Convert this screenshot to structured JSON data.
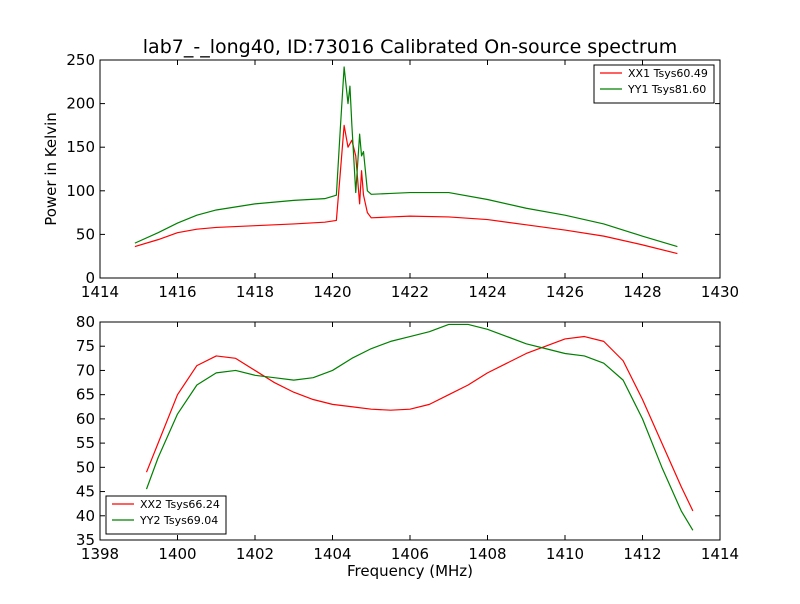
{
  "title": "lab7_-_long40, ID:73016 Calibrated On-source spectrum",
  "chart_data": [
    {
      "type": "line",
      "ylabel": "Power in Kelvin",
      "xlabel": "",
      "xlim": [
        1414,
        1430
      ],
      "ylim": [
        0,
        250
      ],
      "xticks": [
        1414,
        1416,
        1418,
        1420,
        1422,
        1424,
        1426,
        1428,
        1430
      ],
      "yticks": [
        0,
        50,
        100,
        150,
        200,
        250
      ],
      "legend_position": "top-right",
      "series": [
        {
          "name": "XX1 Tsys60.49",
          "color": "#ff0000",
          "x": [
            1414.9,
            1415.5,
            1416.0,
            1416.5,
            1417.0,
            1418.0,
            1419.0,
            1419.8,
            1420.1,
            1420.2,
            1420.3,
            1420.4,
            1420.5,
            1420.6,
            1420.7,
            1420.75,
            1420.8,
            1420.9,
            1421.0,
            1421.5,
            1422.0,
            1423.0,
            1424.0,
            1425.0,
            1426.0,
            1427.0,
            1428.0,
            1428.9
          ],
          "y": [
            36,
            44,
            52,
            56,
            58,
            60,
            62,
            64,
            66,
            120,
            175,
            150,
            158,
            140,
            85,
            123,
            95,
            75,
            69,
            70,
            71,
            70,
            67,
            61,
            55,
            48,
            38,
            28
          ]
        },
        {
          "name": "YY1 Tsys81.60",
          "color": "#008000",
          "x": [
            1414.9,
            1415.5,
            1416.0,
            1416.5,
            1417.0,
            1418.0,
            1419.0,
            1419.8,
            1420.1,
            1420.2,
            1420.3,
            1420.4,
            1420.45,
            1420.5,
            1420.6,
            1420.7,
            1420.75,
            1420.8,
            1420.9,
            1421.0,
            1421.5,
            1422.0,
            1423.0,
            1424.0,
            1425.0,
            1426.0,
            1427.0,
            1428.0,
            1428.9
          ],
          "y": [
            40,
            52,
            63,
            72,
            78,
            85,
            89,
            91,
            95,
            170,
            242,
            200,
            220,
            175,
            98,
            165,
            140,
            145,
            100,
            96,
            97,
            98,
            98,
            90,
            80,
            72,
            62,
            48,
            36
          ]
        }
      ]
    },
    {
      "type": "line",
      "ylabel": "",
      "xlabel": "Frequency (MHz)",
      "xlim": [
        1398,
        1414
      ],
      "ylim": [
        35,
        80
      ],
      "xticks": [
        1398,
        1400,
        1402,
        1404,
        1406,
        1408,
        1410,
        1412,
        1414
      ],
      "yticks": [
        35,
        40,
        45,
        50,
        55,
        60,
        65,
        70,
        75,
        80
      ],
      "legend_position": "bottom-left",
      "series": [
        {
          "name": "XX2 Tsys66.24",
          "color": "#ff0000",
          "x": [
            1399.2,
            1399.5,
            1400.0,
            1400.5,
            1401.0,
            1401.5,
            1402.0,
            1402.5,
            1403.0,
            1403.5,
            1404.0,
            1404.5,
            1405.0,
            1405.5,
            1406.0,
            1406.5,
            1407.0,
            1407.5,
            1408.0,
            1408.5,
            1409.0,
            1409.5,
            1410.0,
            1410.5,
            1411.0,
            1411.5,
            1412.0,
            1412.5,
            1413.0,
            1413.3
          ],
          "y": [
            49,
            55,
            65,
            71,
            73,
            72.5,
            70,
            67.5,
            65.5,
            64,
            63,
            62.5,
            62,
            61.8,
            62,
            63,
            65,
            67,
            69.5,
            71.5,
            73.5,
            75,
            76.5,
            77,
            76,
            72,
            64,
            55,
            46,
            41
          ]
        },
        {
          "name": "YY2 Tsys69.04",
          "color": "#008000",
          "x": [
            1399.2,
            1399.5,
            1400.0,
            1400.5,
            1401.0,
            1401.5,
            1402.0,
            1402.5,
            1403.0,
            1403.5,
            1404.0,
            1404.5,
            1405.0,
            1405.5,
            1406.0,
            1406.5,
            1407.0,
            1407.5,
            1408.0,
            1408.5,
            1409.0,
            1409.5,
            1410.0,
            1410.5,
            1411.0,
            1411.5,
            1412.0,
            1412.5,
            1413.0,
            1413.3
          ],
          "y": [
            45.5,
            52,
            61,
            67,
            69.5,
            70,
            69,
            68.5,
            68,
            68.5,
            70,
            72.5,
            74.5,
            76,
            77,
            78,
            79.5,
            79.5,
            78.5,
            77,
            75.5,
            74.5,
            73.5,
            73,
            71.5,
            68,
            60,
            50,
            41,
            37
          ]
        }
      ]
    }
  ]
}
